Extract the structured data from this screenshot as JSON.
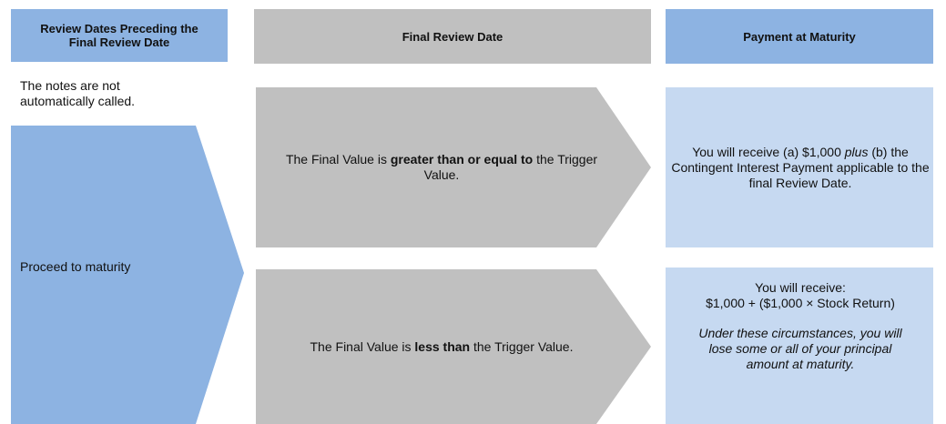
{
  "headers": [
    "Review Dates Preceding the Final Review Date",
    "Final Review Date",
    "Payment at Maturity"
  ],
  "left_note": "The notes are not automatically called.",
  "left_arrow": "Proceed to maturity",
  "rows": [
    {
      "condition": [
        "The Final Value is ",
        "greater than or equal to",
        " the Trigger Value."
      ],
      "payment": [
        "You will receive (a) $1,000 ",
        "plus",
        " (b) the Contingent Interest Payment applicable to the final Review Date."
      ]
    },
    {
      "condition": [
        "The Final Value is ",
        "less than",
        " the Trigger Value."
      ],
      "payment": [
        "You will receive:",
        "$1,000 + ($1,000 × Stock Return)",
        "Under these circumstances, you will lose some or all of your principal amount at maturity."
      ]
    }
  ]
}
